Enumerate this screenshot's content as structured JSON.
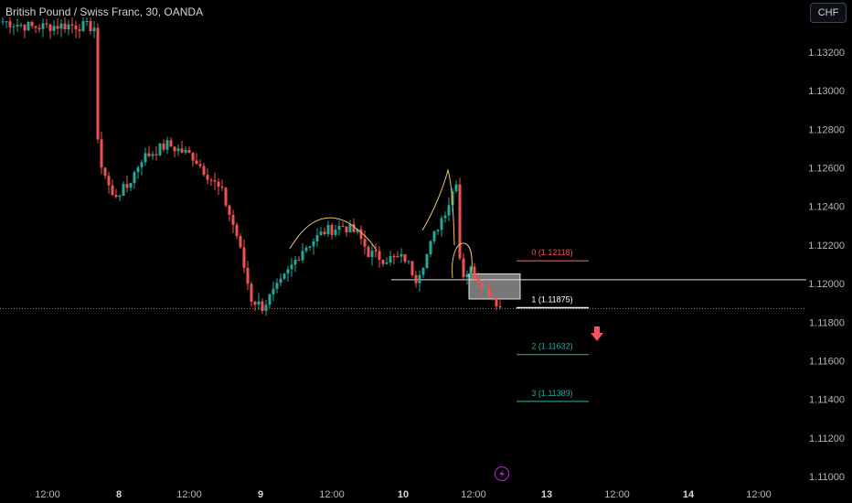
{
  "symbol_title": "British Pound / Swiss Franc, 30, OANDA",
  "currency_button": "CHF",
  "colors": {
    "up": "#26a69a",
    "down": "#ef5350",
    "background": "#000000",
    "fib_0": "#ef5350",
    "fib_1": "#ffffff",
    "fib_ext": "#26a69a",
    "bias_arrow": "#f7525f",
    "pattern_curve": "#e9c46a"
  },
  "chart_data": {
    "type": "candlestick",
    "instrument": "GBPCHF",
    "timeframe": "30",
    "ylim": [
      1.1098,
      1.1338
    ],
    "y_ticks": [
      "1.13200",
      "1.13000",
      "1.12800",
      "1.12600",
      "1.12400",
      "1.12200",
      "1.12000",
      "1.11800",
      "1.11600",
      "1.11400",
      "1.11200",
      "1.11000"
    ],
    "x_ticks": [
      "12:00",
      "8",
      "12:00",
      "9",
      "12:00",
      "10",
      "12:00",
      "13",
      "12:00",
      "14",
      "12:00"
    ],
    "x_ticks_bold": [
      "8",
      "9",
      "10",
      "13",
      "14"
    ],
    "horizontal_level": 1.1202,
    "last_price": 1.1187,
    "fib_levels": [
      {
        "label": "0 (1.12118)",
        "value": 1.12118
      },
      {
        "label": "1 (1.11875)",
        "value": 1.11875
      },
      {
        "label": "2 (1.11632)",
        "value": 1.11632
      },
      {
        "label": "3 (1.11389)",
        "value": 1.11389
      }
    ],
    "zone": {
      "top": 1.1205,
      "bottom": 1.1192
    },
    "anchors": [
      {
        "bar": 0,
        "price": 1.1336
      },
      {
        "bar": 8,
        "price": 1.1333
      },
      {
        "bar": 18,
        "price": 1.1334
      },
      {
        "bar": 25,
        "price": 1.1333
      },
      {
        "bar": 26,
        "price": 1.1272
      },
      {
        "bar": 27,
        "price": 1.1262
      },
      {
        "bar": 30,
        "price": 1.1245
      },
      {
        "bar": 34,
        "price": 1.125
      },
      {
        "bar": 38,
        "price": 1.1265
      },
      {
        "bar": 45,
        "price": 1.1272
      },
      {
        "bar": 52,
        "price": 1.1266
      },
      {
        "bar": 60,
        "price": 1.1247
      },
      {
        "bar": 64,
        "price": 1.1225
      },
      {
        "bar": 68,
        "price": 1.1192
      },
      {
        "bar": 71,
        "price": 1.1188
      },
      {
        "bar": 76,
        "price": 1.12
      },
      {
        "bar": 82,
        "price": 1.1218
      },
      {
        "bar": 88,
        "price": 1.1227
      },
      {
        "bar": 93,
        "price": 1.123
      },
      {
        "bar": 97,
        "price": 1.1226
      },
      {
        "bar": 100,
        "price": 1.1216
      },
      {
        "bar": 104,
        "price": 1.1213
      },
      {
        "bar": 110,
        "price": 1.1213
      },
      {
        "bar": 113,
        "price": 1.1203
      },
      {
        "bar": 116,
        "price": 1.1215
      },
      {
        "bar": 119,
        "price": 1.123
      },
      {
        "bar": 122,
        "price": 1.1242
      },
      {
        "bar": 124,
        "price": 1.1254
      },
      {
        "bar": 125,
        "price": 1.1214
      },
      {
        "bar": 126,
        "price": 1.1205
      },
      {
        "bar": 128,
        "price": 1.1207
      },
      {
        "bar": 131,
        "price": 1.12
      },
      {
        "bar": 134,
        "price": 1.1193
      },
      {
        "bar": 136,
        "price": 1.1188
      }
    ]
  }
}
